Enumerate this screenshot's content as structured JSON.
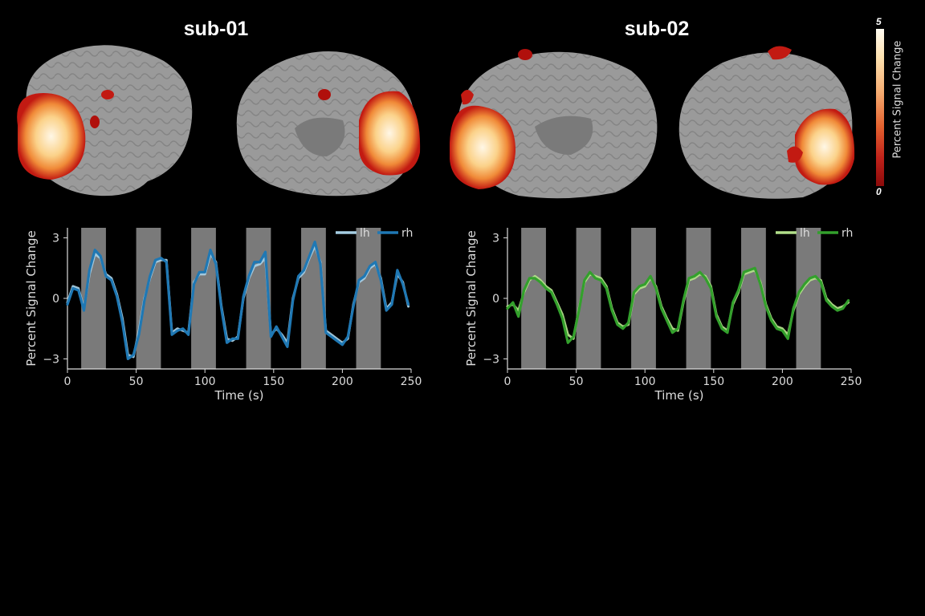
{
  "figure": {
    "titles": [
      "sub-01",
      "sub-02"
    ],
    "colorbar": {
      "label": "Percent Signal Change",
      "min": "0",
      "max": "5"
    }
  },
  "chart_data": [
    {
      "type": "line",
      "subject": "sub-01",
      "xlabel": "Time (s)",
      "ylabel": "Percent Signal Change",
      "xlim": [
        0,
        250
      ],
      "ylim": [
        -3.5,
        3.5
      ],
      "xticks": [
        0,
        50,
        100,
        150,
        200,
        250
      ],
      "yticks": [
        -3,
        0,
        3
      ],
      "legend_placement": "top-right",
      "blocks": [
        [
          10,
          28
        ],
        [
          50,
          68
        ],
        [
          90,
          108
        ],
        [
          130,
          148
        ],
        [
          170,
          188
        ],
        [
          210,
          228
        ]
      ],
      "x": [
        0,
        4,
        8,
        12,
        16,
        20,
        24,
        28,
        32,
        36,
        40,
        44,
        48,
        52,
        56,
        60,
        64,
        68,
        72,
        76,
        80,
        84,
        88,
        92,
        96,
        100,
        104,
        108,
        112,
        116,
        120,
        124,
        128,
        132,
        136,
        140,
        144,
        148,
        152,
        156,
        160,
        164,
        168,
        172,
        176,
        180,
        184,
        188,
        192,
        196,
        200,
        204,
        208,
        212,
        216,
        220,
        224,
        228,
        232,
        236,
        240,
        244,
        248
      ],
      "series": [
        {
          "name": "lh",
          "color": "#a6cee3",
          "values": [
            -0.2,
            0.6,
            0.5,
            -0.5,
            1.2,
            2.2,
            2.0,
            1.2,
            1.0,
            0.2,
            -1.0,
            -2.8,
            -2.9,
            -1.6,
            0.0,
            1.0,
            1.8,
            1.9,
            1.9,
            -1.7,
            -1.5,
            -1.6,
            -1.7,
            0.8,
            1.2,
            1.2,
            2.2,
            1.8,
            -0.4,
            -2.0,
            -2.1,
            -1.9,
            0.0,
            1.0,
            1.6,
            1.7,
            2.0,
            -1.8,
            -1.5,
            -1.8,
            -2.2,
            0.0,
            1.0,
            1.3,
            2.0,
            2.6,
            1.8,
            -1.6,
            -1.8,
            -2.0,
            -2.2,
            -2.0,
            -0.3,
            0.8,
            1.0,
            1.5,
            1.7,
            1.0,
            -0.5,
            -0.2,
            1.2,
            0.8,
            -0.4
          ]
        },
        {
          "name": "rh",
          "color": "#1f78b4",
          "values": [
            -0.3,
            0.5,
            0.4,
            -0.6,
            1.4,
            2.4,
            2.1,
            1.1,
            0.9,
            0.1,
            -1.2,
            -3.0,
            -2.8,
            -1.8,
            -0.1,
            1.1,
            1.9,
            2.0,
            1.8,
            -1.8,
            -1.6,
            -1.5,
            -1.8,
            0.7,
            1.3,
            1.3,
            2.4,
            1.7,
            -0.5,
            -2.2,
            -2.0,
            -2.0,
            0.1,
            1.1,
            1.8,
            1.8,
            2.3,
            -1.9,
            -1.4,
            -1.9,
            -2.4,
            -0.1,
            1.1,
            1.4,
            2.1,
            2.8,
            1.7,
            -1.7,
            -1.9,
            -2.1,
            -2.3,
            -1.9,
            -0.4,
            0.9,
            1.1,
            1.6,
            1.8,
            0.9,
            -0.6,
            -0.3,
            1.4,
            0.7,
            -0.3
          ]
        }
      ]
    },
    {
      "type": "line",
      "subject": "sub-02",
      "xlabel": "Time (s)",
      "ylabel": "Percent Signal Change",
      "xlim": [
        0,
        250
      ],
      "ylim": [
        -3.5,
        3.5
      ],
      "xticks": [
        0,
        50,
        100,
        150,
        200,
        250
      ],
      "yticks": [
        -3,
        0,
        3
      ],
      "legend_placement": "top-right",
      "blocks": [
        [
          10,
          28
        ],
        [
          50,
          68
        ],
        [
          90,
          108
        ],
        [
          130,
          148
        ],
        [
          170,
          188
        ],
        [
          210,
          228
        ]
      ],
      "x": [
        0,
        4,
        8,
        12,
        16,
        20,
        24,
        28,
        32,
        36,
        40,
        44,
        48,
        52,
        56,
        60,
        64,
        68,
        72,
        76,
        80,
        84,
        88,
        92,
        96,
        100,
        104,
        108,
        112,
        116,
        120,
        124,
        128,
        132,
        136,
        140,
        144,
        148,
        152,
        156,
        160,
        164,
        168,
        172,
        176,
        180,
        184,
        188,
        192,
        196,
        200,
        204,
        208,
        212,
        216,
        220,
        224,
        228,
        232,
        236,
        240,
        244,
        248
      ],
      "series": [
        {
          "name": "lh",
          "color": "#b2df8a",
          "values": [
            -0.4,
            -0.3,
            -0.6,
            0.3,
            0.9,
            1.1,
            0.9,
            0.6,
            0.4,
            -0.2,
            -0.8,
            -1.8,
            -2.0,
            -0.5,
            0.8,
            1.2,
            1.1,
            1.0,
            0.6,
            -0.5,
            -1.2,
            -1.4,
            -1.3,
            0.2,
            0.5,
            0.6,
            1.0,
            0.6,
            -0.4,
            -1.0,
            -1.5,
            -1.6,
            -0.2,
            0.9,
            1.0,
            1.2,
            1.1,
            0.6,
            -0.8,
            -1.4,
            -1.6,
            -0.3,
            0.3,
            1.2,
            1.3,
            1.4,
            0.8,
            -0.3,
            -1.0,
            -1.4,
            -1.5,
            -1.8,
            -0.6,
            0.2,
            0.6,
            0.9,
            1.0,
            0.9,
            0.0,
            -0.3,
            -0.5,
            -0.4,
            -0.2
          ]
        },
        {
          "name": "rh",
          "color": "#33a02c",
          "values": [
            -0.5,
            -0.2,
            -0.9,
            0.4,
            1.0,
            1.0,
            0.8,
            0.5,
            0.3,
            -0.3,
            -1.0,
            -2.2,
            -1.9,
            -0.6,
            0.9,
            1.3,
            1.0,
            0.9,
            0.5,
            -0.6,
            -1.3,
            -1.5,
            -1.2,
            0.3,
            0.6,
            0.7,
            1.1,
            0.5,
            -0.5,
            -1.1,
            -1.7,
            -1.5,
            -0.1,
            1.0,
            1.1,
            1.3,
            1.0,
            0.5,
            -0.9,
            -1.5,
            -1.7,
            -0.2,
            0.4,
            1.3,
            1.4,
            1.5,
            0.7,
            -0.4,
            -1.1,
            -1.5,
            -1.6,
            -2.0,
            -0.5,
            0.3,
            0.7,
            1.0,
            1.1,
            0.8,
            -0.1,
            -0.4,
            -0.6,
            -0.5,
            -0.1
          ]
        }
      ]
    }
  ]
}
